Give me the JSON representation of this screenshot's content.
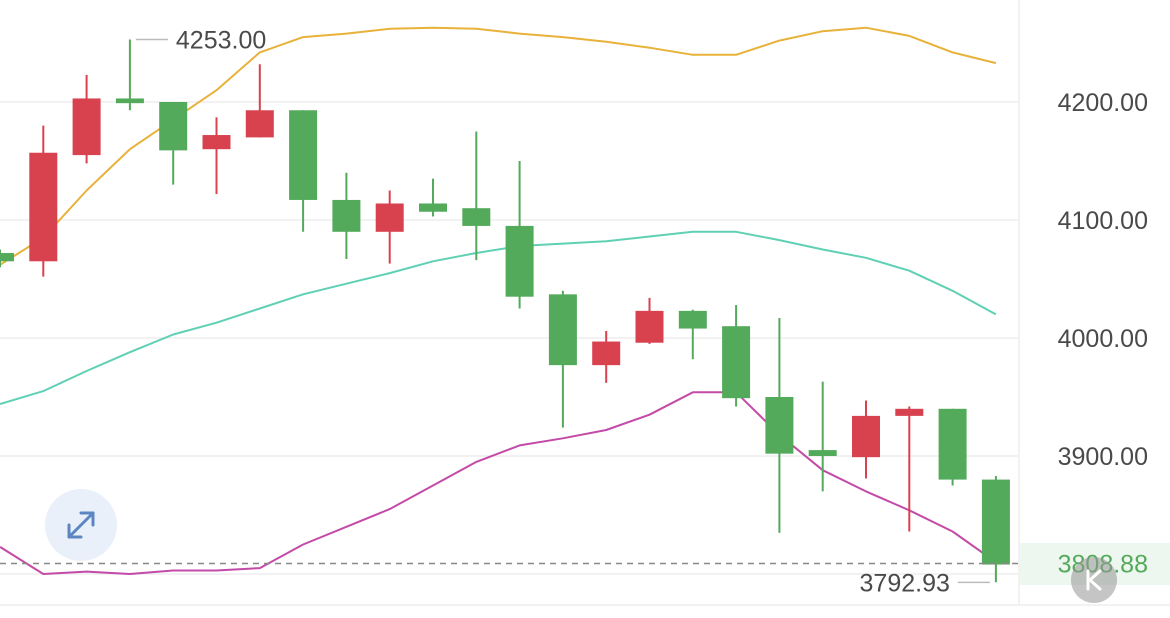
{
  "chart_data": {
    "type": "candlestick",
    "ylim": [
      3788,
      4272
    ],
    "y_ticks": [
      {
        "value": 4200,
        "label": "4200.00"
      },
      {
        "value": 4100,
        "label": "4100.00"
      },
      {
        "value": 4000,
        "label": "4000.00"
      },
      {
        "value": 3900,
        "label": "3900.00"
      }
    ],
    "colors": {
      "up": "#d8424f",
      "down": "#52aa5a",
      "upper_band": "#e8b23a",
      "middle_band": "#5fd0b4",
      "lower_band": "#c44aa8",
      "grid": "#eeeeee"
    },
    "candles": [
      {
        "open": 4072,
        "close": 4065,
        "high": 4075,
        "low": 4060
      },
      {
        "open": 4065,
        "close": 4157,
        "high": 4180,
        "low": 4052
      },
      {
        "open": 4155,
        "close": 4203,
        "high": 4223,
        "low": 4148
      },
      {
        "open": 4203,
        "close": 4199,
        "high": 4253,
        "low": 4193
      },
      {
        "open": 4200,
        "close": 4159,
        "high": 4200,
        "low": 4130
      },
      {
        "open": 4160,
        "close": 4172,
        "high": 4187,
        "low": 4122
      },
      {
        "open": 4170,
        "close": 4193,
        "high": 4232,
        "low": 4170
      },
      {
        "open": 4193,
        "close": 4117,
        "high": 4193,
        "low": 4090
      },
      {
        "open": 4117,
        "close": 4090,
        "high": 4140,
        "low": 4067
      },
      {
        "open": 4090,
        "close": 4114,
        "high": 4125,
        "low": 4063
      },
      {
        "open": 4114,
        "close": 4107,
        "high": 4135,
        "low": 4103
      },
      {
        "open": 4110,
        "close": 4095,
        "high": 4175,
        "low": 4066
      },
      {
        "open": 4095,
        "close": 4035,
        "high": 4150,
        "low": 4025
      },
      {
        "open": 4037,
        "close": 3977,
        "high": 4040,
        "low": 3924
      },
      {
        "open": 3977,
        "close": 3997,
        "high": 4006,
        "low": 3962
      },
      {
        "open": 3996,
        "close": 4023,
        "high": 4034,
        "low": 3995
      },
      {
        "open": 4023,
        "close": 4008,
        "high": 4024,
        "low": 3982
      },
      {
        "open": 4010,
        "close": 3949,
        "high": 4028,
        "low": 3942
      },
      {
        "open": 3950,
        "close": 3902,
        "high": 4017,
        "low": 3835
      },
      {
        "open": 3905,
        "close": 3900,
        "high": 3963,
        "low": 3870
      },
      {
        "open": 3899,
        "close": 3934,
        "high": 3947,
        "low": 3881
      },
      {
        "open": 3934,
        "close": 3940,
        "high": 3942,
        "low": 3836
      },
      {
        "open": 3940,
        "close": 3880,
        "high": 3940,
        "low": 3875
      },
      {
        "open": 3880,
        "close": 3808,
        "high": 3883,
        "low": 3793
      }
    ],
    "upper_band": [
      4062,
      4085,
      4125,
      4160,
      4185,
      4210,
      4242,
      4255,
      4258,
      4262,
      4263,
      4262,
      4258,
      4255,
      4251,
      4246,
      4240,
      4240,
      4252,
      4260,
      4263,
      4256,
      4242,
      4233
    ],
    "middle_band": [
      3944,
      3955,
      3972,
      3988,
      4003,
      4013,
      4025,
      4037,
      4046,
      4055,
      4065,
      4072,
      4078,
      4080,
      4082,
      4086,
      4090,
      4090,
      4083,
      4075,
      4068,
      4057,
      4040,
      4020
    ],
    "lower_band": [
      3823,
      3800,
      3802,
      3800,
      3803,
      3803,
      3805,
      3825,
      3840,
      3855,
      3875,
      3895,
      3909,
      3915,
      3922,
      3935,
      3954,
      3954,
      3918,
      3888,
      3870,
      3854,
      3836,
      3810
    ],
    "max_annotation": {
      "value": 4253,
      "label": "4253.00"
    },
    "min_annotation": {
      "value": 3792.93,
      "label": "3792.93"
    },
    "last_price": {
      "value": 3808.88,
      "label": "3808.88"
    }
  }
}
